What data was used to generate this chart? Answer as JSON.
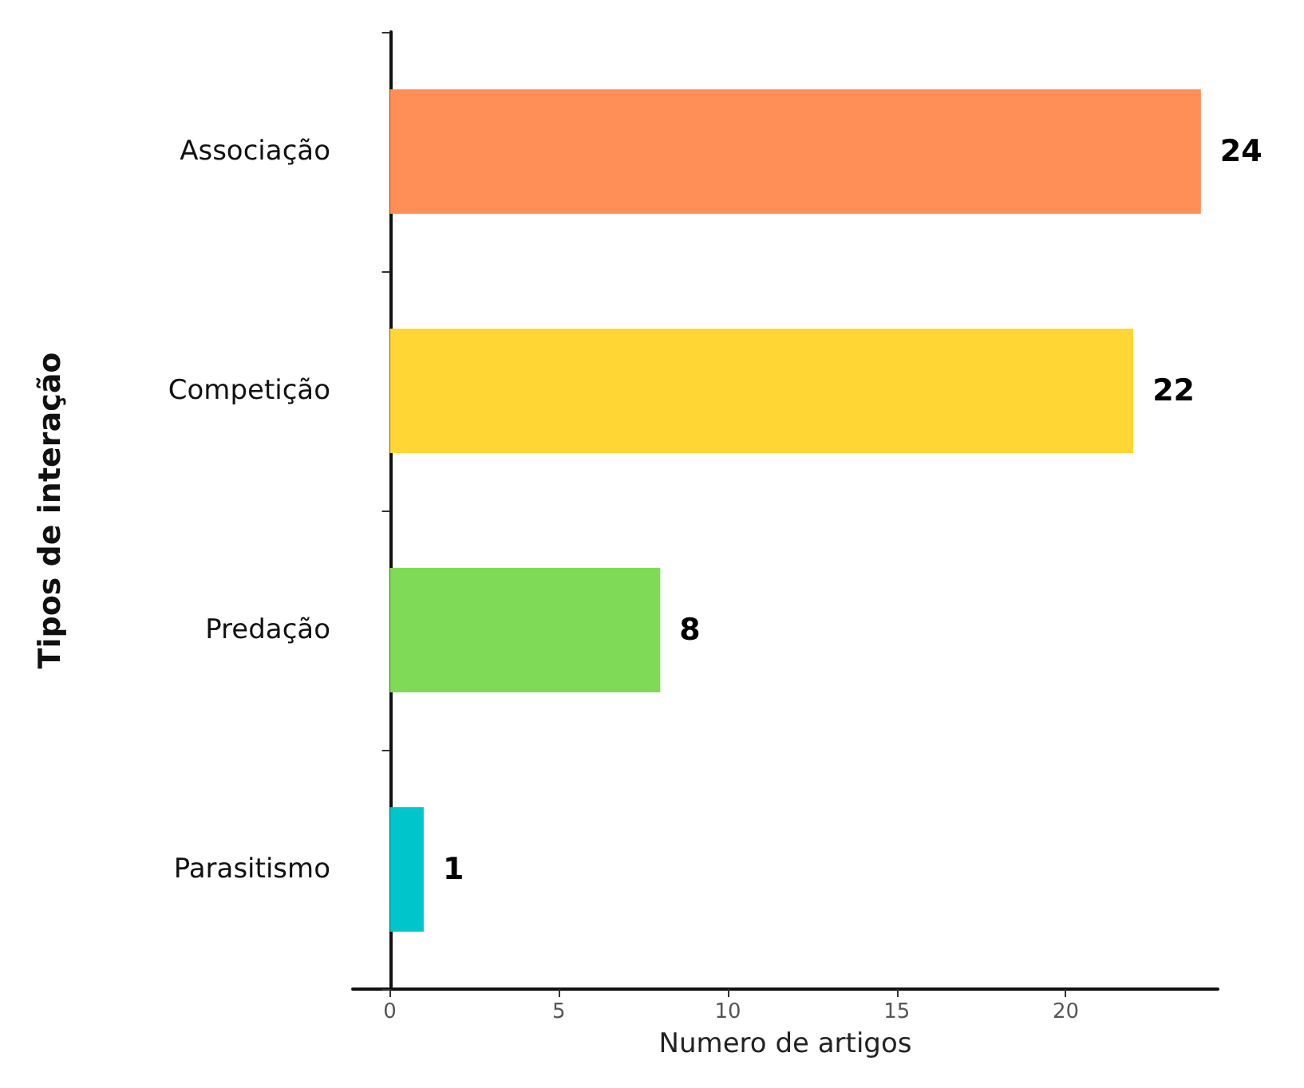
{
  "chart_data": {
    "type": "bar",
    "orientation": "horizontal",
    "xlabel": "Numero de artigos",
    "ylabel": "Tipos de interação",
    "categories": [
      "Associação",
      "Competição",
      "Predação",
      "Parasitismo"
    ],
    "values": [
      24,
      22,
      8,
      1
    ],
    "colors": [
      "#ff8f57",
      "#ffd633",
      "#7fdb57",
      "#00c5cb"
    ],
    "xlim": [
      -1.1,
      24.5
    ],
    "xticks": [
      0,
      5,
      10,
      15,
      20
    ],
    "grid": false,
    "data_labels": true
  }
}
